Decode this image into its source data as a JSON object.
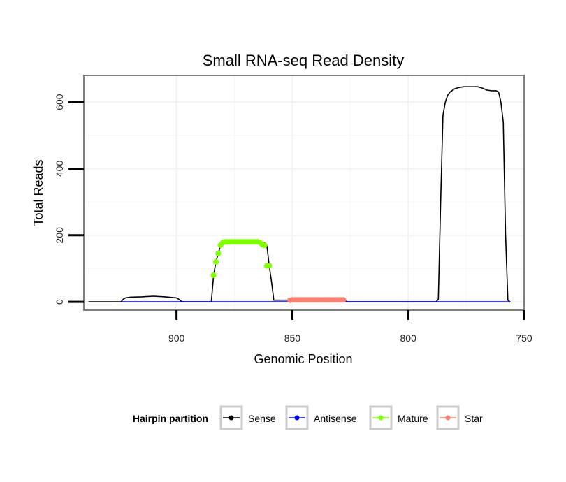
{
  "chart_data": {
    "type": "line",
    "title": "Small RNA-seq Read Density",
    "xlabel": "Genomic Position",
    "ylabel": "Total Reads",
    "xlim": [
      940,
      750
    ],
    "ylim": [
      -25,
      680
    ],
    "x_reversed": true,
    "x_ticks": [
      900,
      850,
      800,
      750
    ],
    "x_tick_labels": [
      "900",
      "850",
      "800",
      "750"
    ],
    "y_ticks": [
      0,
      200,
      400,
      600
    ],
    "y_tick_labels": [
      "0",
      "200",
      "400",
      "600"
    ],
    "grid": true,
    "legend": {
      "title": "Hairpin partition",
      "position": "bottom",
      "entries": [
        {
          "label": "Sense",
          "color": "#000000"
        },
        {
          "label": "Antisense",
          "color": "#0000ff"
        },
        {
          "label": "Mature",
          "color": "#7fff00"
        },
        {
          "label": "Star",
          "color": "#fa8072"
        }
      ]
    },
    "series": [
      {
        "name": "Sense",
        "color": "#000000",
        "style": "line",
        "points": [
          [
            938,
            0
          ],
          [
            924,
            0
          ],
          [
            923,
            8
          ],
          [
            922,
            12
          ],
          [
            920,
            14
          ],
          [
            915,
            15
          ],
          [
            910,
            17
          ],
          [
            905,
            15
          ],
          [
            900,
            12
          ],
          [
            899,
            8
          ],
          [
            898,
            2
          ],
          [
            897,
            0
          ],
          [
            885,
            0
          ],
          [
            884,
            80
          ],
          [
            883,
            120
          ],
          [
            882,
            145
          ],
          [
            881,
            170
          ],
          [
            880,
            178
          ],
          [
            862,
            178
          ],
          [
            861,
            170
          ],
          [
            860,
            108
          ],
          [
            859,
            60
          ],
          [
            858,
            5
          ],
          [
            851,
            5
          ],
          [
            850,
            8
          ],
          [
            828,
            8
          ],
          [
            827,
            2
          ],
          [
            826,
            0
          ],
          [
            788,
            0
          ],
          [
            787,
            8
          ],
          [
            786,
            300
          ],
          [
            785,
            560
          ],
          [
            784,
            600
          ],
          [
            783,
            620
          ],
          [
            782,
            630
          ],
          [
            780,
            640
          ],
          [
            778,
            644
          ],
          [
            776,
            646
          ],
          [
            773,
            646
          ],
          [
            770,
            646
          ],
          [
            768,
            642
          ],
          [
            766,
            636
          ],
          [
            764,
            634
          ],
          [
            762,
            634
          ],
          [
            761,
            630
          ],
          [
            760,
            600
          ],
          [
            759,
            540
          ],
          [
            758,
            200
          ],
          [
            757,
            5
          ],
          [
            756,
            0
          ]
        ]
      },
      {
        "name": "Antisense",
        "color": "#0000ff",
        "style": "line",
        "points": [
          [
            924,
            0
          ],
          [
            756,
            0
          ]
        ]
      },
      {
        "name": "Mature",
        "color": "#7fff00",
        "style": "points",
        "points": [
          [
            884,
            80
          ],
          [
            883,
            120
          ],
          [
            882,
            145
          ],
          [
            881,
            170
          ],
          [
            880,
            178
          ],
          [
            879,
            180
          ],
          [
            878,
            180
          ],
          [
            877,
            180
          ],
          [
            876,
            180
          ],
          [
            875,
            180
          ],
          [
            874,
            180
          ],
          [
            873,
            180
          ],
          [
            872,
            180
          ],
          [
            871,
            180
          ],
          [
            870,
            180
          ],
          [
            869,
            180
          ],
          [
            868,
            180
          ],
          [
            867,
            180
          ],
          [
            866,
            180
          ],
          [
            865,
            180
          ],
          [
            864,
            178
          ],
          [
            863,
            172
          ],
          [
            862,
            170
          ],
          [
            861,
            108
          ],
          [
            860,
            108
          ]
        ]
      },
      {
        "name": "Star",
        "color": "#fa8072",
        "style": "points",
        "points": [
          [
            851,
            5
          ],
          [
            850,
            6
          ],
          [
            849,
            6
          ],
          [
            848,
            6
          ],
          [
            847,
            6
          ],
          [
            846,
            6
          ],
          [
            845,
            6
          ],
          [
            844,
            6
          ],
          [
            843,
            6
          ],
          [
            842,
            6
          ],
          [
            841,
            6
          ],
          [
            840,
            6
          ],
          [
            839,
            6
          ],
          [
            838,
            6
          ],
          [
            837,
            6
          ],
          [
            836,
            6
          ],
          [
            835,
            6
          ],
          [
            834,
            6
          ],
          [
            833,
            6
          ],
          [
            832,
            6
          ],
          [
            831,
            6
          ],
          [
            830,
            6
          ],
          [
            829,
            6
          ],
          [
            828,
            6
          ]
        ]
      }
    ]
  }
}
